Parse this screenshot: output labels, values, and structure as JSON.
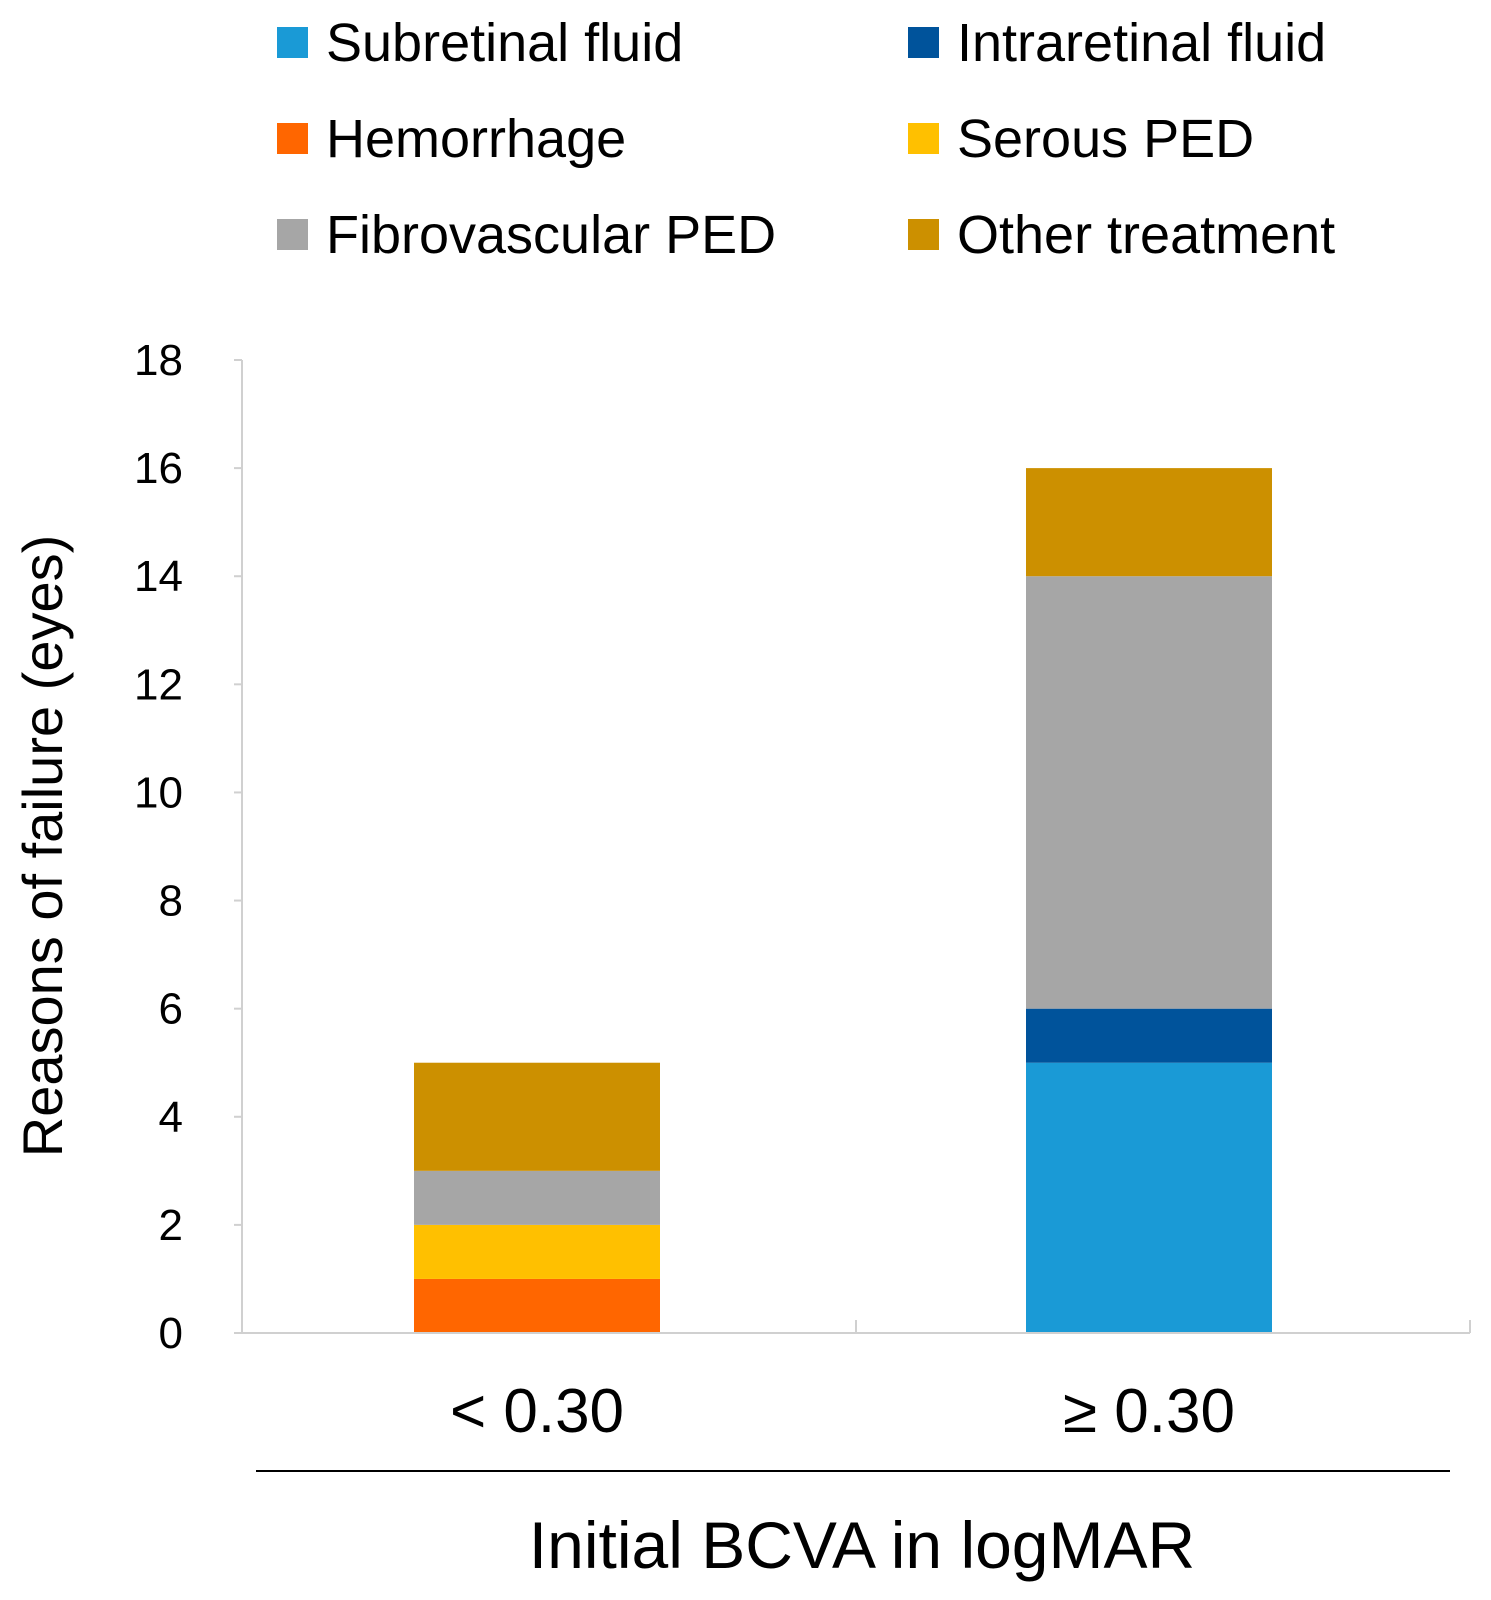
{
  "chart_data": {
    "type": "bar",
    "stacked": true,
    "title": "",
    "xlabel": "Initial BCVA in logMAR",
    "ylabel": "Reasons of failure (eyes)",
    "ylim": [
      0,
      18
    ],
    "yticks": [
      "0",
      "2",
      "4",
      "6",
      "8",
      "10",
      "12",
      "14",
      "16",
      "18"
    ],
    "grid": false,
    "legend_position": "top",
    "categories": [
      "< 0.30",
      "≥ 0.30"
    ],
    "series": [
      {
        "name": "Subretinal fluid",
        "color": "#1a9ad6",
        "values": [
          0,
          5
        ]
      },
      {
        "name": "Intraretinal fluid",
        "color": "#00539b",
        "values": [
          0,
          1
        ]
      },
      {
        "name": "Hemorrhage",
        "color": "#ff6600",
        "values": [
          1,
          0
        ]
      },
      {
        "name": "Serous PED",
        "color": "#ffc000",
        "values": [
          1,
          0
        ]
      },
      {
        "name": "Fibrovascular PED",
        "color": "#a6a6a6",
        "values": [
          1,
          8
        ]
      },
      {
        "name": "Other treatment",
        "color": "#cc9000",
        "values": [
          2,
          2
        ]
      }
    ]
  }
}
